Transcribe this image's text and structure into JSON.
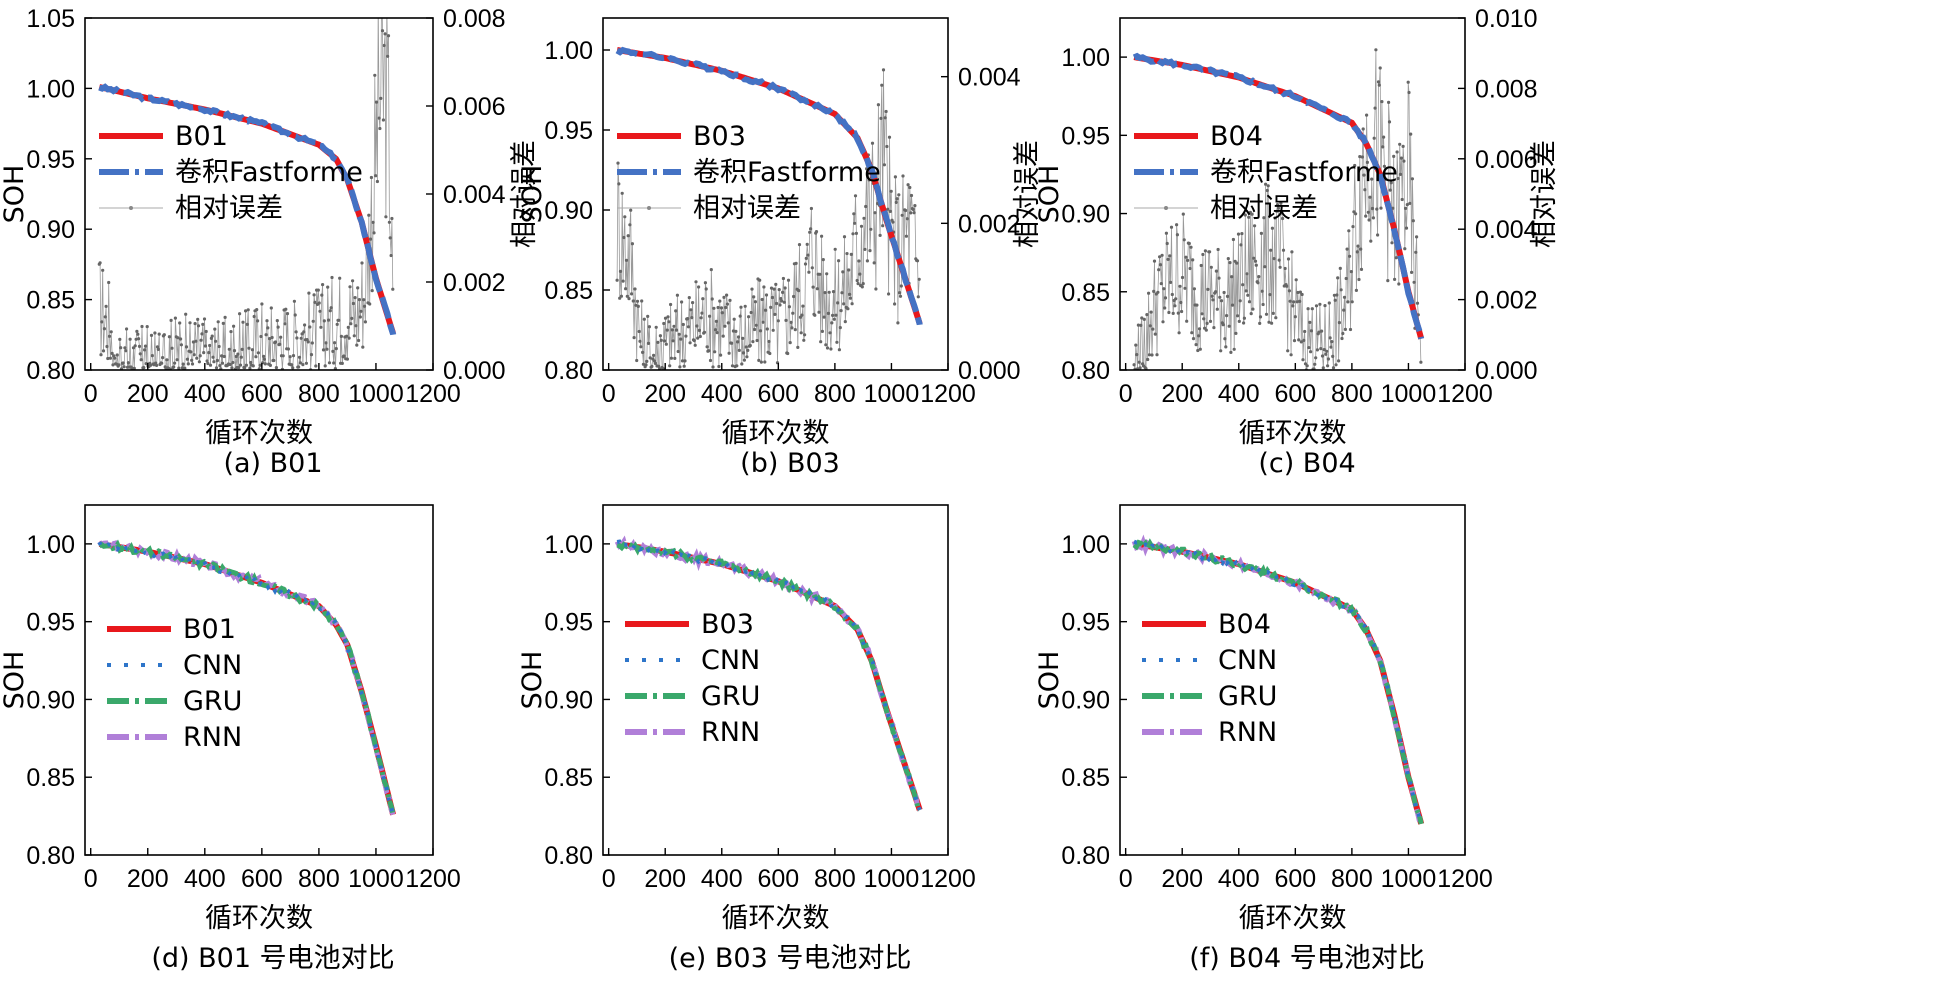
{
  "figure": {
    "xlabel": "循环次数",
    "ylabel": "SOH",
    "y2label": "相对误差"
  },
  "colors": {
    "truth": "#e8181c",
    "fastformer": "#4472c4",
    "relerr": "#666666",
    "cnn": "#2e75c9",
    "gru": "#3aa86b",
    "rnn": "#b07fd8"
  },
  "chart_data": [
    {
      "id": "a",
      "type": "line",
      "caption": "(a) B01",
      "xlabel": "循环次数",
      "ylabel": "SOH",
      "y2label": "相对误差",
      "xlim": [
        -20,
        1200
      ],
      "xticks": [
        0,
        200,
        400,
        600,
        800,
        1000,
        1200
      ],
      "ylim": [
        0.8,
        1.05
      ],
      "yticks": [
        0.8,
        0.85,
        0.9,
        0.95,
        1.0,
        1.05
      ],
      "y2lim": [
        0,
        0.008
      ],
      "y2ticks": [
        0.0,
        0.002,
        0.004,
        0.006,
        0.008
      ],
      "legend": [
        "B01",
        "卷积Fastforme",
        "相对误差"
      ],
      "soh": [
        [
          30,
          1.001
        ],
        [
          200,
          0.993
        ],
        [
          400,
          0.985
        ],
        [
          600,
          0.975
        ],
        [
          800,
          0.96
        ],
        [
          860,
          0.95
        ],
        [
          900,
          0.935
        ],
        [
          950,
          0.905
        ],
        [
          1000,
          0.865
        ],
        [
          1060,
          0.826
        ]
      ],
      "relative_error": [
        [
          30,
          0.00145
        ],
        [
          60,
          0.0011
        ],
        [
          100,
          0.00035
        ],
        [
          150,
          0.0002
        ],
        [
          200,
          0.00025
        ],
        [
          250,
          0.0003
        ],
        [
          300,
          0.0004
        ],
        [
          350,
          0.00045
        ],
        [
          400,
          0.0004
        ],
        [
          450,
          0.00035
        ],
        [
          500,
          0.0004
        ],
        [
          550,
          0.0005
        ],
        [
          600,
          0.0007
        ],
        [
          650,
          0.0006
        ],
        [
          700,
          0.0007
        ],
        [
          750,
          0.0008
        ],
        [
          800,
          0.0009
        ],
        [
          850,
          0.0011
        ],
        [
          900,
          0.0013
        ],
        [
          930,
          0.0012
        ],
        [
          960,
          0.0018
        ],
        [
          990,
          0.004
        ],
        [
          1010,
          0.006
        ],
        [
          1030,
          0.0065
        ],
        [
          1045,
          0.0055
        ],
        [
          1060,
          0.0012
        ]
      ]
    },
    {
      "id": "b",
      "type": "line",
      "caption": "(b) B03",
      "xlabel": "循环次数",
      "ylabel": "SOH",
      "y2label": "相对误差",
      "xlim": [
        -20,
        1200
      ],
      "xticks": [
        0,
        200,
        400,
        600,
        800,
        1000,
        1200
      ],
      "ylim": [
        0.8,
        1.02
      ],
      "yticks": [
        0.8,
        0.85,
        0.9,
        0.95,
        1.0
      ],
      "y2lim": [
        0,
        0.0048
      ],
      "y2ticks": [
        0.0,
        0.002,
        0.004
      ],
      "legend": [
        "B03",
        "卷积Fastforme",
        "相对误差"
      ],
      "soh": [
        [
          30,
          1.0
        ],
        [
          200,
          0.995
        ],
        [
          400,
          0.987
        ],
        [
          600,
          0.976
        ],
        [
          800,
          0.96
        ],
        [
          880,
          0.945
        ],
        [
          930,
          0.925
        ],
        [
          980,
          0.895
        ],
        [
          1040,
          0.862
        ],
        [
          1100,
          0.829
        ]
      ],
      "relative_error": [
        [
          30,
          0.0021
        ],
        [
          50,
          0.0018
        ],
        [
          80,
          0.0015
        ],
        [
          110,
          0.00045
        ],
        [
          150,
          0.0002
        ],
        [
          200,
          0.00035
        ],
        [
          250,
          0.0005
        ],
        [
          300,
          0.0006
        ],
        [
          350,
          0.0008
        ],
        [
          400,
          0.0006
        ],
        [
          450,
          0.00045
        ],
        [
          500,
          0.0005
        ],
        [
          550,
          0.0007
        ],
        [
          600,
          0.0006
        ],
        [
          650,
          0.0009
        ],
        [
          700,
          0.0012
        ],
        [
          720,
          0.0017
        ],
        [
          750,
          0.0011
        ],
        [
          800,
          0.0009
        ],
        [
          850,
          0.0012
        ],
        [
          880,
          0.0018
        ],
        [
          910,
          0.0021
        ],
        [
          940,
          0.0022
        ],
        [
          970,
          0.003
        ],
        [
          1000,
          0.0018
        ],
        [
          1030,
          0.0016
        ],
        [
          1060,
          0.002
        ],
        [
          1100,
          0.0012
        ]
      ]
    },
    {
      "id": "c",
      "type": "line",
      "caption": "(c) B04",
      "xlabel": "循环次数",
      "ylabel": "SOH",
      "y2label": "相对误差",
      "xlim": [
        -20,
        1200
      ],
      "xticks": [
        0,
        200,
        400,
        600,
        800,
        1000,
        1200
      ],
      "ylim": [
        0.8,
        1.025
      ],
      "yticks": [
        0.8,
        0.85,
        0.9,
        0.95,
        1.0
      ],
      "y2lim": [
        0,
        0.01
      ],
      "y2ticks": [
        0.0,
        0.002,
        0.004,
        0.006,
        0.008,
        0.01
      ],
      "legend": [
        "B04",
        "卷积Fastforme",
        "相对误差"
      ],
      "soh": [
        [
          30,
          1.0
        ],
        [
          200,
          0.995
        ],
        [
          400,
          0.987
        ],
        [
          600,
          0.975
        ],
        [
          800,
          0.958
        ],
        [
          850,
          0.945
        ],
        [
          900,
          0.925
        ],
        [
          950,
          0.89
        ],
        [
          1000,
          0.85
        ],
        [
          1045,
          0.82
        ]
      ],
      "relative_error": [
        [
          30,
          0.0002
        ],
        [
          60,
          0.0005
        ],
        [
          100,
          0.0018
        ],
        [
          150,
          0.0025
        ],
        [
          200,
          0.0028
        ],
        [
          250,
          0.0022
        ],
        [
          300,
          0.0021
        ],
        [
          350,
          0.0019
        ],
        [
          400,
          0.0023
        ],
        [
          450,
          0.003
        ],
        [
          500,
          0.0033
        ],
        [
          550,
          0.0029
        ],
        [
          580,
          0.002
        ],
        [
          620,
          0.0011
        ],
        [
          660,
          0.0008
        ],
        [
          700,
          0.0007
        ],
        [
          740,
          0.0012
        ],
        [
          780,
          0.0018
        ],
        [
          810,
          0.004
        ],
        [
          840,
          0.0058
        ],
        [
          870,
          0.0068
        ],
        [
          900,
          0.0058
        ],
        [
          930,
          0.0052
        ],
        [
          950,
          0.0038
        ],
        [
          980,
          0.005
        ],
        [
          1000,
          0.0055
        ],
        [
          1020,
          0.0028
        ],
        [
          1045,
          0.0012
        ]
      ]
    },
    {
      "id": "d",
      "type": "line",
      "caption": "(d) B01 号电池对比",
      "xlabel": "循环次数",
      "ylabel": "SOH",
      "xlim": [
        -20,
        1200
      ],
      "xticks": [
        0,
        200,
        400,
        600,
        800,
        1000,
        1200
      ],
      "ylim": [
        0.8,
        1.025
      ],
      "yticks": [
        0.8,
        0.85,
        0.9,
        0.95,
        1.0
      ],
      "legend": [
        "B01",
        "CNN",
        "GRU",
        "RNN"
      ],
      "soh": [
        [
          30,
          1.0
        ],
        [
          200,
          0.995
        ],
        [
          400,
          0.987
        ],
        [
          600,
          0.975
        ],
        [
          800,
          0.96
        ],
        [
          860,
          0.948
        ],
        [
          900,
          0.935
        ],
        [
          950,
          0.905
        ],
        [
          1000,
          0.87
        ],
        [
          1060,
          0.826
        ]
      ]
    },
    {
      "id": "e",
      "type": "line",
      "caption": "(e) B03 号电池对比",
      "xlabel": "循环次数",
      "ylabel": "SOH",
      "xlim": [
        -20,
        1200
      ],
      "xticks": [
        0,
        200,
        400,
        600,
        800,
        1000,
        1200
      ],
      "ylim": [
        0.8,
        1.025
      ],
      "yticks": [
        0.8,
        0.85,
        0.9,
        0.95,
        1.0
      ],
      "legend": [
        "B03",
        "CNN",
        "GRU",
        "RNN"
      ],
      "soh": [
        [
          30,
          1.0
        ],
        [
          200,
          0.995
        ],
        [
          400,
          0.987
        ],
        [
          600,
          0.976
        ],
        [
          800,
          0.96
        ],
        [
          880,
          0.945
        ],
        [
          930,
          0.925
        ],
        [
          980,
          0.895
        ],
        [
          1040,
          0.862
        ],
        [
          1100,
          0.829
        ]
      ]
    },
    {
      "id": "f",
      "type": "line",
      "caption": "(f) B04 号电池对比",
      "xlabel": "循环次数",
      "ylabel": "SOH",
      "xlim": [
        -20,
        1200
      ],
      "xticks": [
        0,
        200,
        400,
        600,
        800,
        1000,
        1200
      ],
      "ylim": [
        0.8,
        1.025
      ],
      "yticks": [
        0.8,
        0.85,
        0.9,
        0.95,
        1.0
      ],
      "legend": [
        "B04",
        "CNN",
        "GRU",
        "RNN"
      ],
      "soh": [
        [
          30,
          1.0
        ],
        [
          200,
          0.995
        ],
        [
          400,
          0.987
        ],
        [
          600,
          0.975
        ],
        [
          800,
          0.958
        ],
        [
          850,
          0.945
        ],
        [
          900,
          0.925
        ],
        [
          950,
          0.89
        ],
        [
          1000,
          0.85
        ],
        [
          1045,
          0.82
        ]
      ]
    }
  ]
}
